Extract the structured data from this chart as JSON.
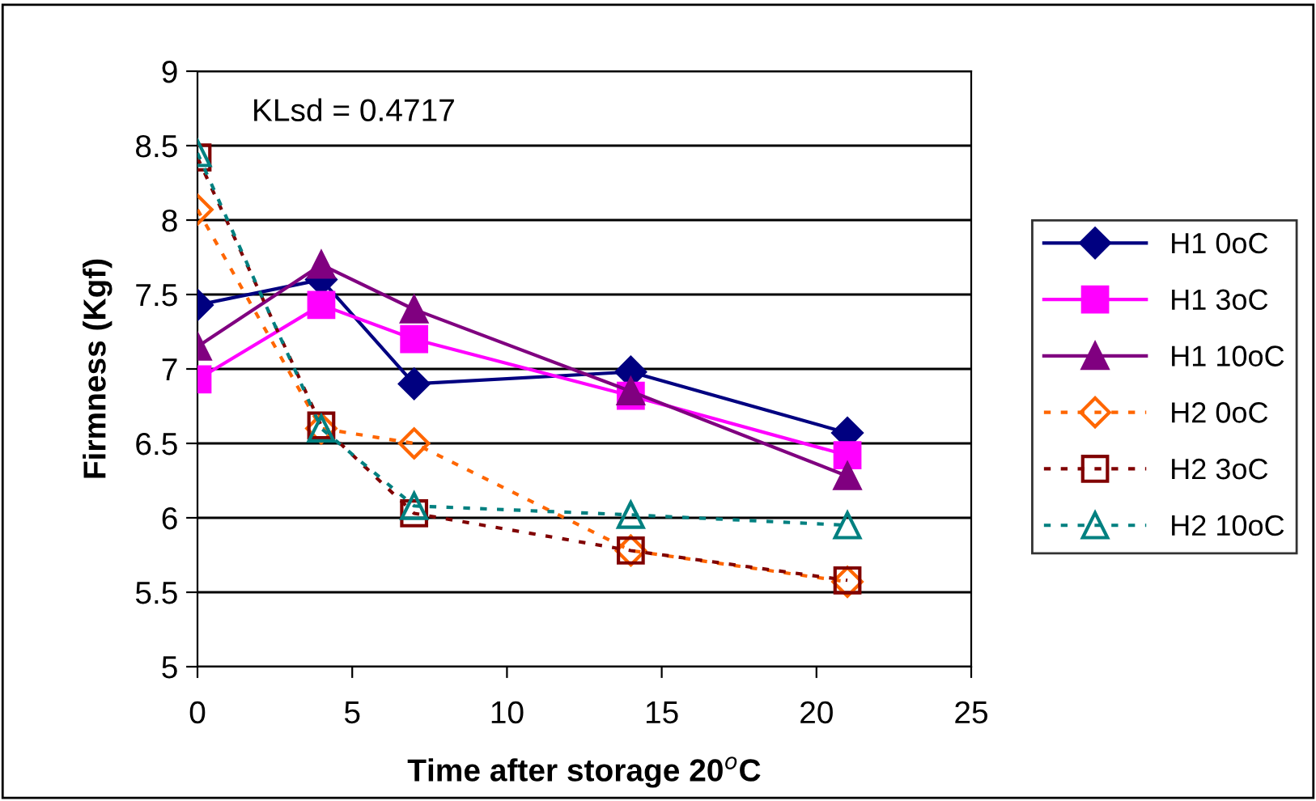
{
  "chart_data": {
    "type": "line",
    "xlabel": "Time after storage 20$^{o}$C",
    "ylabel": "Firmness (Kgf)",
    "annotations": [
      "KLsd = 0.4717"
    ],
    "x": [
      0,
      4,
      7,
      14,
      21
    ],
    "xlim": [
      0,
      25
    ],
    "xticks": [
      0,
      5,
      10,
      15,
      20,
      25
    ],
    "ylim": [
      5,
      9
    ],
    "yticks": [
      5,
      5.5,
      6,
      6.5,
      7,
      7.5,
      8,
      8.5,
      9
    ],
    "grid": "y",
    "legend": "right",
    "series": [
      {
        "name": "H1 0oC",
        "color": "#000080",
        "marker": "diamond",
        "line_style": "solid",
        "values": [
          7.43,
          7.6,
          6.9,
          6.98,
          6.57
        ]
      },
      {
        "name": "H1 3oC",
        "color": "#ff00ff",
        "marker": "square",
        "line_style": "solid",
        "values": [
          6.93,
          7.43,
          7.2,
          6.82,
          6.42
        ]
      },
      {
        "name": "H1 10oC",
        "color": "#800080",
        "marker": "triangle",
        "line_style": "solid",
        "values": [
          7.15,
          7.7,
          7.4,
          6.85,
          6.28
        ]
      },
      {
        "name": "H2 0oC",
        "color": "#ff6600",
        "marker": "diamond",
        "line_style": "dotted",
        "values": [
          8.07,
          6.6,
          6.5,
          5.78,
          5.57
        ]
      },
      {
        "name": "H2 3oC",
        "color": "#800000",
        "marker": "square",
        "line_style": "dotted",
        "values": [
          8.42,
          6.62,
          6.03,
          5.78,
          5.58
        ]
      },
      {
        "name": "H2 10oC",
        "color": "#008080",
        "marker": "triangle",
        "line_style": "dotted",
        "values": [
          8.45,
          6.6,
          6.08,
          6.02,
          5.95
        ]
      }
    ]
  }
}
